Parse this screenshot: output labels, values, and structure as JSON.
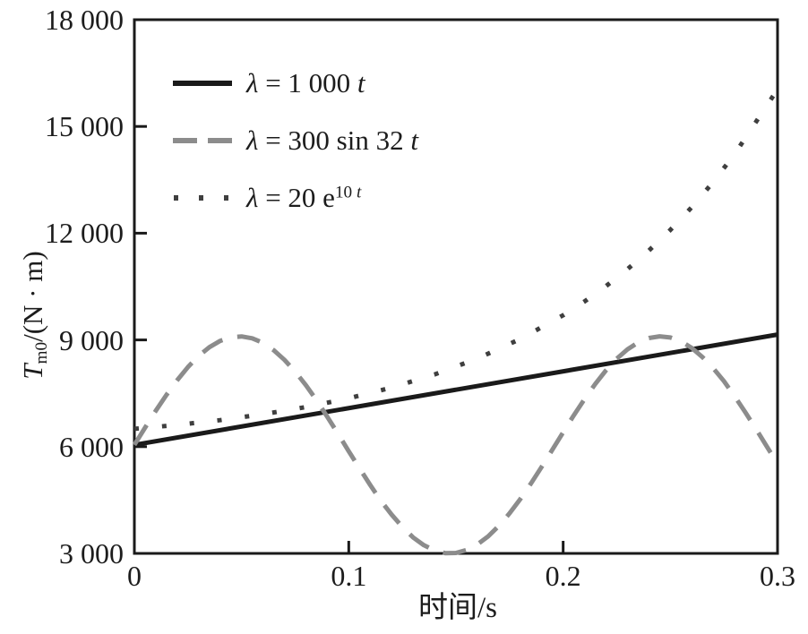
{
  "figure": {
    "background": "#ffffff",
    "text_color": "#1c1c1c"
  },
  "chart_data": {
    "type": "line",
    "title": "",
    "xlabel": "时间/s",
    "ylabel": "T_m0/(N·m)",
    "ylabel_segments": [
      {
        "t": "T",
        "i": true
      },
      {
        "t": "m0",
        "sub": true
      },
      {
        "t": "/(N · m)"
      }
    ],
    "xlim": [
      0,
      0.3
    ],
    "ylim": [
      3000,
      18000
    ],
    "xticks": [
      0,
      0.1,
      0.2,
      0.3
    ],
    "xtick_labels": [
      "0",
      "0.1",
      "0.2",
      "0.3"
    ],
    "yticks": [
      3000,
      6000,
      9000,
      12000,
      15000,
      18000
    ],
    "ytick_labels": [
      "3 000",
      "6 000",
      "9 000",
      "12 000",
      "15 000",
      "18 000"
    ],
    "xtick_marks": [
      0.1,
      0.2
    ],
    "ytick_marks": [
      6000,
      9000,
      12000,
      15000
    ],
    "grid": false,
    "legend_position": "upper-left-inside",
    "axis_color": "#1a1a1a",
    "series": [
      {
        "name": "λ = 1 000 t",
        "label_segments": [
          {
            "t": "λ",
            "i": true
          },
          {
            "t": " = 1 000 "
          },
          {
            "t": "t",
            "i": true
          }
        ],
        "style": "solid",
        "color": "#1a1a1a",
        "points": [
          [
            0,
            6050
          ],
          [
            0.3,
            9150
          ]
        ]
      },
      {
        "name": "λ = 300 sin 32 t",
        "label_segments": [
          {
            "t": "λ",
            "i": true
          },
          {
            "t": " = 300 sin 32 "
          },
          {
            "t": "t",
            "i": true
          }
        ],
        "style": "dashed",
        "color": "#8c8c8c",
        "points": [
          [
            0.0,
            6050
          ],
          [
            0.005,
            6536
          ],
          [
            0.01,
            7010
          ],
          [
            0.015,
            7458
          ],
          [
            0.02,
            7871
          ],
          [
            0.025,
            8238
          ],
          [
            0.03,
            8549
          ],
          [
            0.035,
            8795
          ],
          [
            0.04,
            8972
          ],
          [
            0.045,
            9074
          ],
          [
            0.05,
            9099
          ],
          [
            0.055,
            9045
          ],
          [
            0.06,
            8916
          ],
          [
            0.065,
            8711
          ],
          [
            0.07,
            8442
          ],
          [
            0.075,
            8110
          ],
          [
            0.08,
            7726
          ],
          [
            0.085,
            7304
          ],
          [
            0.09,
            6839
          ],
          [
            0.095,
            6359
          ],
          [
            0.1,
            5872
          ],
          [
            0.105,
            5394
          ],
          [
            0.11,
            4923
          ],
          [
            0.115,
            4478
          ],
          [
            0.12,
            4089
          ],
          [
            0.125,
            3742
          ],
          [
            0.13,
            3451
          ],
          [
            0.135,
            3231
          ],
          [
            0.14,
            3082
          ],
          [
            0.145,
            3007
          ],
          [
            0.15,
            3012
          ],
          [
            0.155,
            3097
          ],
          [
            0.16,
            3251
          ],
          [
            0.165,
            3477
          ],
          [
            0.17,
            3776
          ],
          [
            0.175,
            4125
          ],
          [
            0.18,
            4526
          ],
          [
            0.185,
            4968
          ],
          [
            0.19,
            5434
          ],
          [
            0.195,
            5918
          ],
          [
            0.2,
            6405
          ],
          [
            0.205,
            6884
          ],
          [
            0.21,
            7340
          ],
          [
            0.215,
            7764
          ],
          [
            0.22,
            8144
          ],
          [
            0.225,
            8471
          ],
          [
            0.23,
            8736
          ],
          [
            0.235,
            8930
          ],
          [
            0.24,
            9054
          ],
          [
            0.245,
            9100
          ],
          [
            0.25,
            9068
          ],
          [
            0.255,
            8960
          ],
          [
            0.26,
            8774
          ],
          [
            0.265,
            8516
          ],
          [
            0.27,
            8205
          ],
          [
            0.275,
            7841
          ],
          [
            0.28,
            7417
          ],
          [
            0.285,
            6964
          ],
          [
            0.29,
            6490
          ],
          [
            0.295,
            6004
          ],
          [
            0.3,
            5518
          ]
        ]
      },
      {
        "name": "λ = 20 e^(10 t)",
        "label_segments": [
          {
            "t": "λ",
            "i": true
          },
          {
            "t": " = 20 e"
          },
          {
            "t": "10 ",
            "sup": true
          },
          {
            "t": "t",
            "sup": true,
            "i": true
          }
        ],
        "style": "dotted",
        "color": "#3f3f3f",
        "points": [
          [
            0.0,
            6500
          ],
          [
            0.02,
            6611
          ],
          [
            0.04,
            6746
          ],
          [
            0.06,
            6911
          ],
          [
            0.08,
            7113
          ],
          [
            0.1,
            7359
          ],
          [
            0.12,
            7660
          ],
          [
            0.14,
            8028
          ],
          [
            0.16,
            8477
          ],
          [
            0.18,
            9025
          ],
          [
            0.2,
            9695
          ],
          [
            0.21,
            10083
          ],
          [
            0.22,
            10513
          ],
          [
            0.23,
            10987
          ],
          [
            0.24,
            11512
          ],
          [
            0.25,
            12091
          ],
          [
            0.26,
            12732
          ],
          [
            0.27,
            13440
          ],
          [
            0.28,
            14222
          ],
          [
            0.29,
            15133
          ],
          [
            0.3,
            16043
          ]
        ]
      }
    ]
  }
}
